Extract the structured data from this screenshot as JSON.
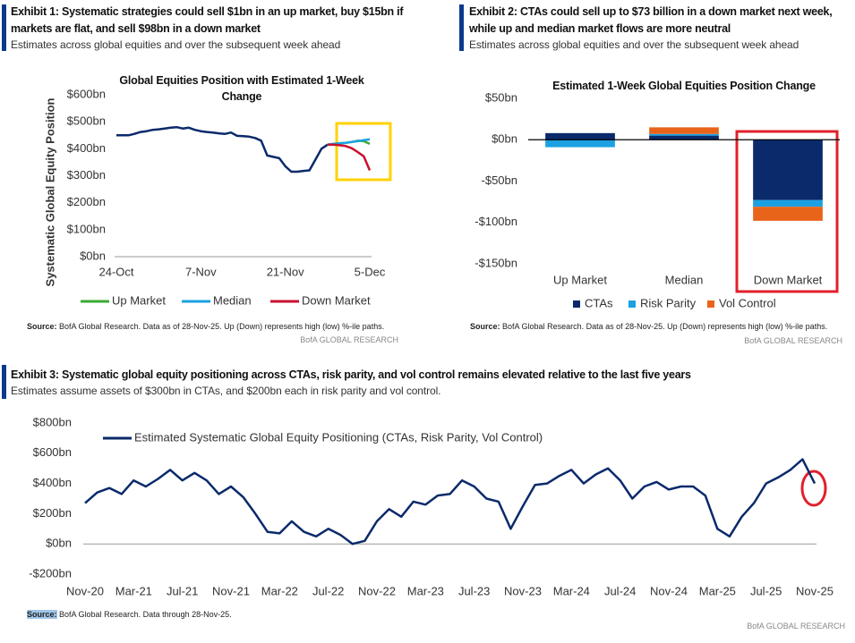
{
  "exhibits": [
    {
      "title": "Exhibit 1: Systematic strategies could sell $1bn in an up market, buy $15bn if markets are flat, and sell $98bn in a down market",
      "subtitle": "Estimates across global equities and over the subsequent week ahead",
      "source_label": "Source:",
      "source_text": "BofA Global Research.  Data as of 28-Nov-25. Up (Down) represents high (low) %-ile paths.",
      "footer": "BofA GLOBAL RESEARCH"
    },
    {
      "title": "Exhibit 2: CTAs could sell up to $73 billion in a down market next week, while up and median market flows are more neutral",
      "subtitle": "Estimates across global equities and over the subsequent week ahead",
      "source_label": "Source:",
      "source_text": "BofA Global Research.  Data as of 28-Nov-25. Up (Down) represents high (low) %-ile paths.",
      "footer": "BofA GLOBAL RESEARCH"
    },
    {
      "title": "Exhibit 3: Systematic global equity positioning across CTAs, risk parity, and vol control remains elevated relative to the last five years",
      "subtitle": "Estimates assume assets of $300bn in CTAs, and $200bn each in risk parity and vol control.",
      "source_label": "Source:",
      "source_text": "BofA Global Research.  Data through 28-Nov-25.",
      "footer": "BofA GLOBAL RESEARCH"
    }
  ],
  "chart_data": [
    {
      "type": "line",
      "title": "Global Equities Position with Estimated 1-Week Change",
      "ylabel": "Systematic Global Equity Position",
      "categories": [
        "24-Oct",
        null,
        null,
        null,
        null,
        null,
        null,
        null,
        null,
        null,
        null,
        null,
        null,
        null,
        "7-Nov",
        null,
        null,
        null,
        null,
        null,
        null,
        null,
        null,
        null,
        null,
        null,
        null,
        null,
        "21-Nov",
        null,
        null,
        null,
        null,
        null,
        null,
        null,
        null,
        null,
        null,
        null,
        null,
        null,
        "5-Dec"
      ],
      "series": [
        {
          "color": "#0a2a6b",
          "values": [
            450,
            450,
            450,
            455,
            462,
            465,
            470,
            472,
            475,
            478,
            480,
            475,
            478,
            470,
            465,
            462,
            460,
            457,
            455,
            460,
            448,
            447,
            445,
            440,
            430,
            375,
            370,
            365,
            335,
            315,
            315,
            318,
            320,
            360,
            400,
            415,
            null,
            null,
            null,
            null,
            null,
            null,
            null
          ]
        },
        {
          "name": "Up Market",
          "color": "#3aaa35",
          "values": [
            null,
            null,
            null,
            null,
            null,
            null,
            null,
            null,
            null,
            null,
            null,
            null,
            null,
            null,
            null,
            null,
            null,
            null,
            null,
            null,
            null,
            null,
            null,
            null,
            null,
            null,
            null,
            null,
            null,
            null,
            null,
            null,
            null,
            null,
            null,
            415,
            418,
            420,
            422,
            425,
            430,
            428,
            418
          ]
        },
        {
          "name": "Median",
          "color": "#1ba1e2",
          "values": [
            null,
            null,
            null,
            null,
            null,
            null,
            null,
            null,
            null,
            null,
            null,
            null,
            null,
            null,
            null,
            null,
            null,
            null,
            null,
            null,
            null,
            null,
            null,
            null,
            null,
            null,
            null,
            null,
            null,
            null,
            null,
            null,
            null,
            null,
            null,
            415,
            418,
            420,
            422,
            425,
            428,
            432,
            435
          ]
        },
        {
          "name": "Down Market",
          "color": "#c8102e",
          "values": [
            null,
            null,
            null,
            null,
            null,
            null,
            null,
            null,
            null,
            null,
            null,
            null,
            null,
            null,
            null,
            null,
            null,
            null,
            null,
            null,
            null,
            null,
            null,
            null,
            null,
            null,
            null,
            null,
            null,
            null,
            null,
            null,
            null,
            null,
            null,
            415,
            415,
            413,
            410,
            402,
            388,
            372,
            320
          ]
        }
      ],
      "ylim": [
        0,
        600
      ],
      "yticks": [
        {
          "value": 0,
          "label": "$0bn"
        },
        {
          "value": 100,
          "label": "$100bn"
        },
        {
          "value": 200,
          "label": "$200bn"
        },
        {
          "value": 300,
          "label": "$300bn"
        },
        {
          "value": 400,
          "label": "$400bn"
        },
        {
          "value": 500,
          "label": "$500bn"
        },
        {
          "value": 600,
          "label": "$600bn"
        }
      ],
      "legend": "bottom"
    },
    {
      "type": "bar",
      "stacked": true,
      "title": "Estimated 1-Week Global Equities Position Change",
      "categories": [
        "Up Market",
        "Median",
        "Down Market"
      ],
      "series": [
        {
          "name": "CTAs",
          "color": "#0a2a6b",
          "values": [
            8,
            5,
            -73
          ]
        },
        {
          "name": "Risk Parity",
          "color": "#1ba1e2",
          "values": [
            -9,
            2,
            -8
          ]
        },
        {
          "name": "Vol Control",
          "color": "#e8641b",
          "values": [
            0,
            8,
            -17
          ]
        }
      ],
      "ylim": [
        -150,
        50
      ],
      "yticks": [
        {
          "value": -150,
          "label": "-$150bn"
        },
        {
          "value": -100,
          "label": "-$100bn"
        },
        {
          "value": -50,
          "label": "-$50bn"
        },
        {
          "value": 0,
          "label": "$0bn"
        },
        {
          "value": 50,
          "label": "$50bn"
        }
      ],
      "legend": "bottom"
    },
    {
      "type": "line",
      "categories": [
        "Nov-20",
        null,
        null,
        null,
        "Mar-21",
        null,
        null,
        null,
        "Jul-21",
        null,
        null,
        null,
        "Nov-21",
        null,
        null,
        null,
        "Mar-22",
        null,
        null,
        null,
        "Jul-22",
        null,
        null,
        null,
        "Nov-22",
        null,
        null,
        null,
        "Mar-23",
        null,
        null,
        null,
        "Jul-23",
        null,
        null,
        null,
        "Nov-23",
        null,
        null,
        null,
        "Mar-24",
        null,
        null,
        null,
        "Jul-24",
        null,
        null,
        null,
        "Nov-24",
        null,
        null,
        null,
        "Mar-25",
        null,
        null,
        null,
        "Jul-25",
        null,
        null,
        null,
        "Nov-25"
      ],
      "series": [
        {
          "name": "Estimated Systematic Global Equity Positioning (CTAs, Risk Parity, Vol Control)",
          "color": "#0a2a6b",
          "values": [
            270,
            340,
            370,
            330,
            420,
            380,
            430,
            490,
            420,
            470,
            420,
            330,
            380,
            310,
            200,
            80,
            70,
            150,
            80,
            50,
            100,
            60,
            0,
            20,
            150,
            230,
            180,
            280,
            260,
            320,
            330,
            420,
            380,
            300,
            280,
            100,
            250,
            390,
            400,
            450,
            490,
            400,
            460,
            500,
            420,
            300,
            380,
            410,
            360,
            380,
            380,
            320,
            100,
            50,
            180,
            270,
            400,
            440,
            490,
            560,
            400
          ]
        }
      ],
      "ylim": [
        -200,
        800
      ],
      "yticks": [
        {
          "value": -200,
          "label": "-$200bn"
        },
        {
          "value": 0,
          "label": "$0bn"
        },
        {
          "value": 200,
          "label": "$200bn"
        },
        {
          "value": 400,
          "label": "$400bn"
        },
        {
          "value": 600,
          "label": "$600bn"
        },
        {
          "value": 800,
          "label": "$800bn"
        }
      ],
      "legend": "upper left"
    }
  ]
}
